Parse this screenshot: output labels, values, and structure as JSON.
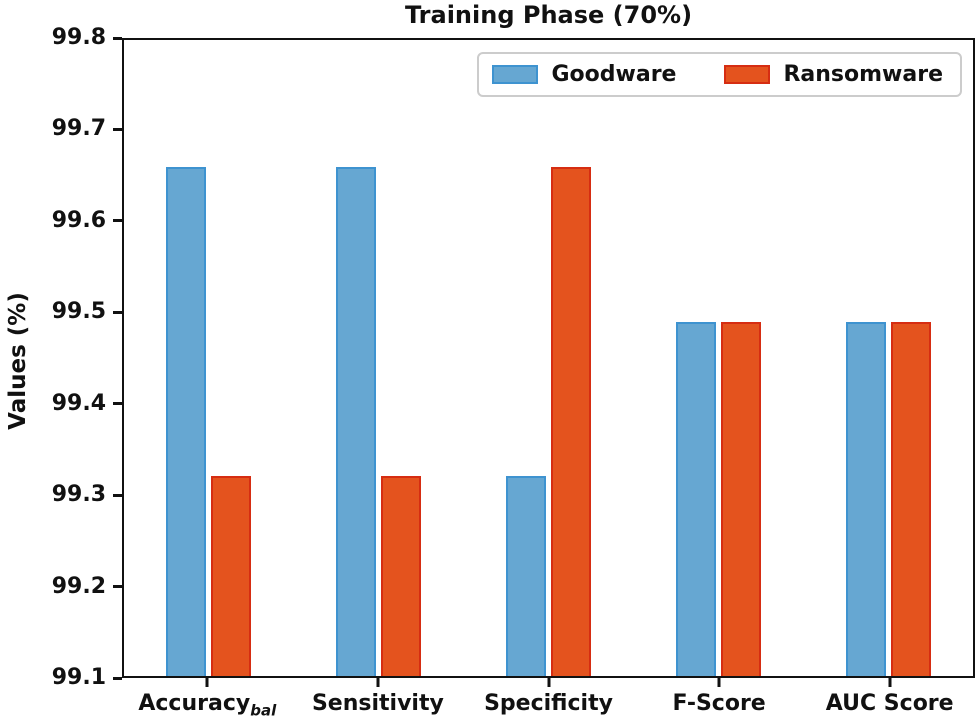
{
  "chart_data": {
    "type": "bar",
    "title": "Training Phase (70%)",
    "xlabel": "",
    "ylabel": "Values (%)",
    "ylim": [
      99.1,
      99.8
    ],
    "yticks": [
      99.8,
      99.7,
      99.6,
      99.5,
      99.4,
      99.3,
      99.2,
      99.1
    ],
    "ytick_labels": [
      "99.8",
      "99.7",
      "99.6",
      "99.5",
      "99.4",
      "99.3",
      "99.2",
      "99.1"
    ],
    "categories": [
      {
        "label": "Accuracy",
        "subscript": "bal"
      },
      {
        "label": "Sensitivity"
      },
      {
        "label": "Specificity"
      },
      {
        "label": "F-Score"
      },
      {
        "label": "AUC Score"
      }
    ],
    "series": [
      {
        "name": "Goodware",
        "color": "#66A7D2",
        "edge_color": "#3E93D0",
        "values": [
          99.66,
          99.66,
          99.32,
          99.49,
          99.49
        ]
      },
      {
        "name": "Ransomware",
        "color": "#E4531E",
        "edge_color": "#D62D12",
        "values": [
          99.32,
          99.32,
          99.66,
          99.49,
          99.49
        ]
      }
    ],
    "legend_position": "upper right",
    "grid": false,
    "axis_color": "#111111"
  }
}
